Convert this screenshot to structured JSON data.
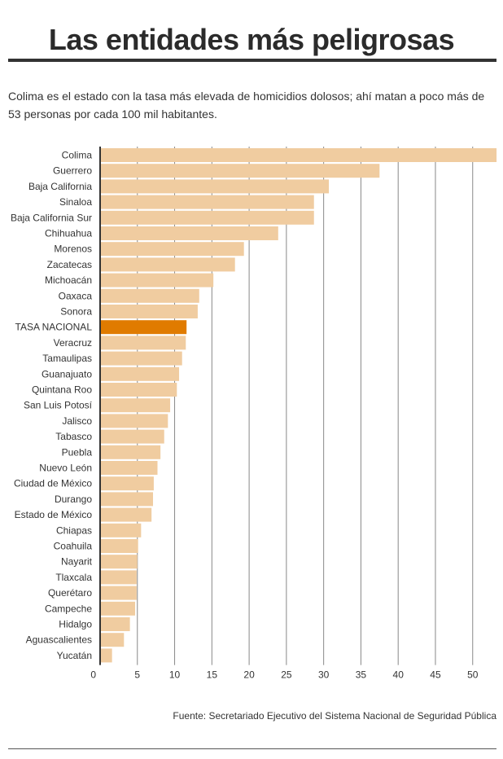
{
  "title": "Las entidades más peligrosas",
  "subtitle": "Colima es el estado con la tasa más elevada de homicidios dolosos; ahí matan a poco más de 53 personas por cada 100 mil habitantes.",
  "source": "Fuente: Secretariado Ejecutivo del Sistema Nacional de Seguridad Pública",
  "colors": {
    "bar": "#f0cca0",
    "highlight": "#e07b00",
    "grid": "#888888",
    "axis": "#333333"
  },
  "chart_data": {
    "type": "bar",
    "orientation": "horizontal",
    "categories": [
      "Colima",
      "Guerrero",
      "Baja California",
      "Sinaloa",
      "Baja California Sur",
      "Chihuahua",
      "Morenos",
      "Zacatecas",
      "Michoacán",
      "Oaxaca",
      "Sonora",
      "TASA NACIONAL",
      "Veracruz",
      "Tamaulipas",
      "Guanajuato",
      "Quintana Roo",
      "San Luis Potosí",
      "Jalisco",
      "Tabasco",
      "Puebla",
      "Nuevo León",
      "Ciudad de México",
      "Durango",
      "Estado de México",
      "Chiapas",
      "Coahuila",
      "Nayarit",
      "Tlaxcala",
      "Querétaro",
      "Campeche",
      "Hidalgo",
      "Aguascalientes",
      "Yucatán"
    ],
    "values": [
      53.2,
      37.5,
      30.7,
      28.7,
      28.7,
      23.9,
      19.3,
      18.1,
      15.2,
      13.3,
      13.1,
      11.6,
      11.5,
      11.0,
      10.6,
      10.3,
      9.4,
      9.1,
      8.6,
      8.1,
      7.7,
      7.2,
      7.1,
      6.9,
      5.5,
      5.1,
      5.0,
      4.9,
      4.9,
      4.7,
      4.0,
      3.2,
      1.6
    ],
    "highlight": "TASA NACIONAL",
    "xticks": [
      0,
      5,
      10,
      15,
      20,
      25,
      30,
      35,
      40,
      45,
      50
    ],
    "xlim": [
      0,
      53.2
    ],
    "xlabel": "",
    "ylabel": "",
    "grid": true
  }
}
